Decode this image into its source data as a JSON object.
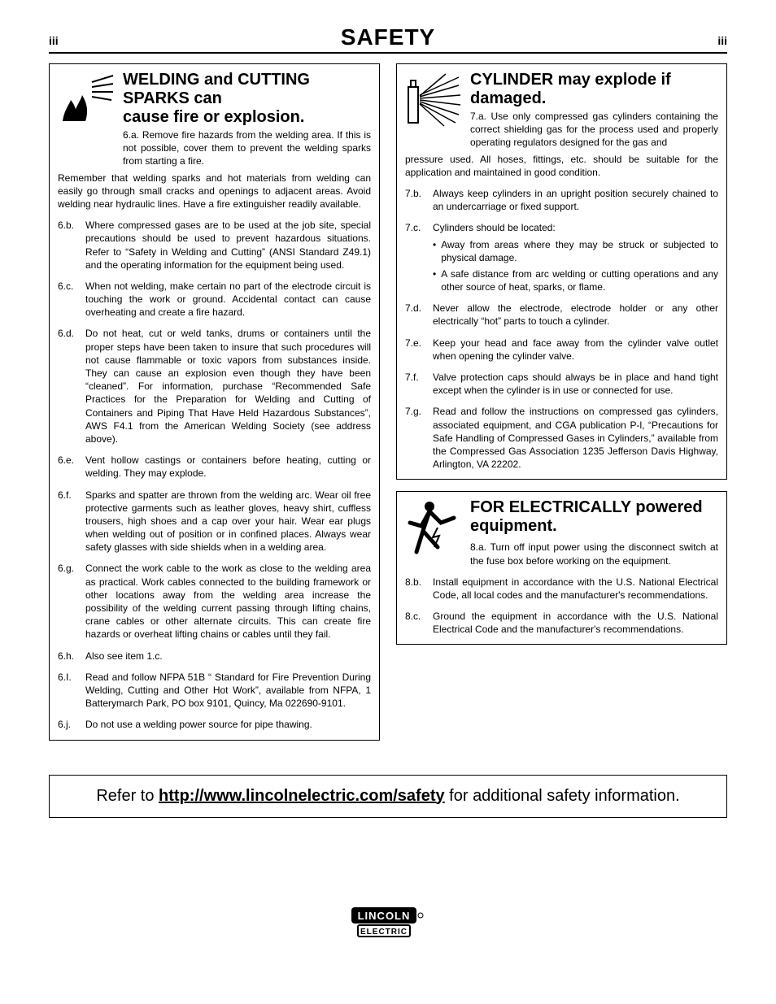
{
  "page": {
    "title": "SAFETY",
    "pageNumLeft": "iii",
    "pageNumRight": "iii"
  },
  "sec6": {
    "title": "WELDING and CUTTING SPARKS can\ncause fire or explosion.",
    "firstLabel": "6.a.",
    "firstBody": "Remove fire hazards from the welding area. If this is not possible, cover them to prevent the welding sparks from starting a fire.",
    "continuation": "Remember that welding sparks and hot materials from welding can easily go through small cracks and openings to adjacent areas. Avoid welding near hydraulic lines. Have a fire extinguisher readily available.",
    "items": [
      {
        "label": "6.b.",
        "body": "Where compressed gases are to be used at the job site, special precautions should be used to prevent hazardous situations. Refer to “Safety in Welding and Cutting” (ANSI Standard Z49.1) and the operating information for the equipment being used."
      },
      {
        "label": "6.c.",
        "body": "When not welding, make certain no part of the electrode circuit is touching the work or ground. Accidental contact can cause overheating and create a fire hazard."
      },
      {
        "label": "6.d.",
        "body": "Do not heat, cut or weld tanks, drums or containers until the proper steps have been taken to insure that such procedures will not cause flammable or toxic vapors from substances inside. They can cause an explosion even though they have been “cleaned”. For information, purchase “Recommended Safe Practices for the Preparation for Welding and Cutting of Containers and Piping That Have Held Hazardous Substances”, AWS F4.1 from the American Welding Society (see address above)."
      },
      {
        "label": "6.e.",
        "body": "Vent hollow castings or containers before heating, cutting or welding. They may explode."
      },
      {
        "label": "6.f.",
        "body": "Sparks and spatter are thrown from the welding arc. Wear oil free protective garments such as leather gloves, heavy shirt, cuffless trousers, high shoes and a cap over your hair. Wear ear plugs when welding out of position or in confined places. Always wear safety glasses with side shields when in a welding area."
      },
      {
        "label": "6.g.",
        "body": "Connect the work cable to the work as close to the welding area as practical. Work cables connected to the building framework or other locations away from the welding area increase the possibility of the welding current passing through lifting chains, crane cables or other alternate circuits. This can create fire hazards or overheat lifting chains or cables until they fail."
      },
      {
        "label": "6.h.",
        "body": "Also see item 1.c."
      },
      {
        "label": "6.I.",
        "body": "Read and follow NFPA 51B “ Standard for Fire Prevention During Welding, Cutting and Other Hot Work”, available from NFPA, 1 Batterymarch Park, PO box 9101, Quincy, Ma 022690-9101."
      },
      {
        "label": "6.j.",
        "body": "Do not use a welding power source for pipe thawing."
      }
    ]
  },
  "sec7": {
    "title": "CYLINDER may explode if damaged.",
    "firstLabel": "7.a.",
    "firstBody": "Use only compressed gas cylinders containing the correct shielding gas for the process used and properly operating regulators designed for the gas and",
    "continuation": "pressure used. All hoses, fittings, etc. should be suitable for the application and maintained in good condition.",
    "items": [
      {
        "label": "7.b.",
        "body": "Always keep cylinders in an upright position securely chained to an undercarriage or fixed support."
      },
      {
        "label": "7.c.",
        "body": "Cylinders should be located:",
        "bullets": [
          "Away from areas where they may be struck or subjected to physical damage.",
          "A safe distance from arc welding or cutting operations and any other source of heat, sparks, or flame."
        ]
      },
      {
        "label": "7.d.",
        "body": "Never allow the electrode, electrode holder or any other electrically “hot” parts to touch a cylinder."
      },
      {
        "label": "7.e.",
        "body": "Keep your head and face away from the cylinder valve outlet when opening the cylinder valve."
      },
      {
        "label": "7.f.",
        "body": "Valve protection caps should always be in place and hand tight except when the cylinder is in use or connected for use."
      },
      {
        "label": "7.g.",
        "body": "Read and follow the instructions on compressed gas cylinders, associated equipment, and CGA publication P-l, “Precautions for Safe Handling of Compressed Gases in Cylinders,” available from the Compressed Gas Association 1235 Jefferson Davis Highway, Arlington, VA 22202."
      }
    ]
  },
  "sec8": {
    "title": "FOR ELECTRICALLY powered equipment.",
    "firstLabel": "8.a.",
    "firstBody": "Turn off input power using the disconnect switch at the fuse box before working on the equipment.",
    "items": [
      {
        "label": "8.b.",
        "body": "Install equipment in accordance with the U.S. National Electrical Code, all local codes and the manufacturer's recommendations."
      },
      {
        "label": "8.c.",
        "body": "Ground the equipment in accordance with the U.S. National Electrical Code and the manufacturer's recommendations."
      }
    ]
  },
  "refer": {
    "prefix": "Refer to ",
    "link": "http://www.lincolnelectric.com/safety",
    "suffix": " for additional safety information."
  },
  "logo": {
    "top": "LINCOLN",
    "bottom": "ELECTRIC"
  }
}
